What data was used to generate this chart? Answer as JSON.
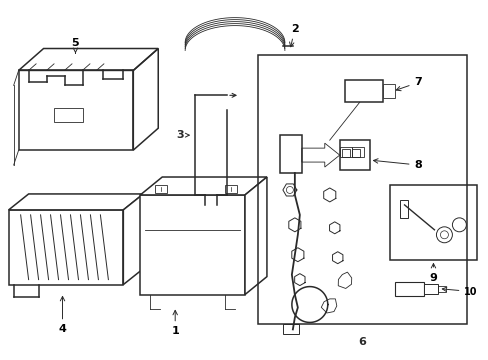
{
  "bg_color": "#ffffff",
  "line_color": "#2a2a2a",
  "label_color": "#000000",
  "figsize": [
    4.89,
    3.6
  ],
  "dpi": 100,
  "lw": 0.9,
  "lw_thin": 0.6,
  "lw_thick": 1.1,
  "label_fs": 8,
  "label_fs_small": 7
}
